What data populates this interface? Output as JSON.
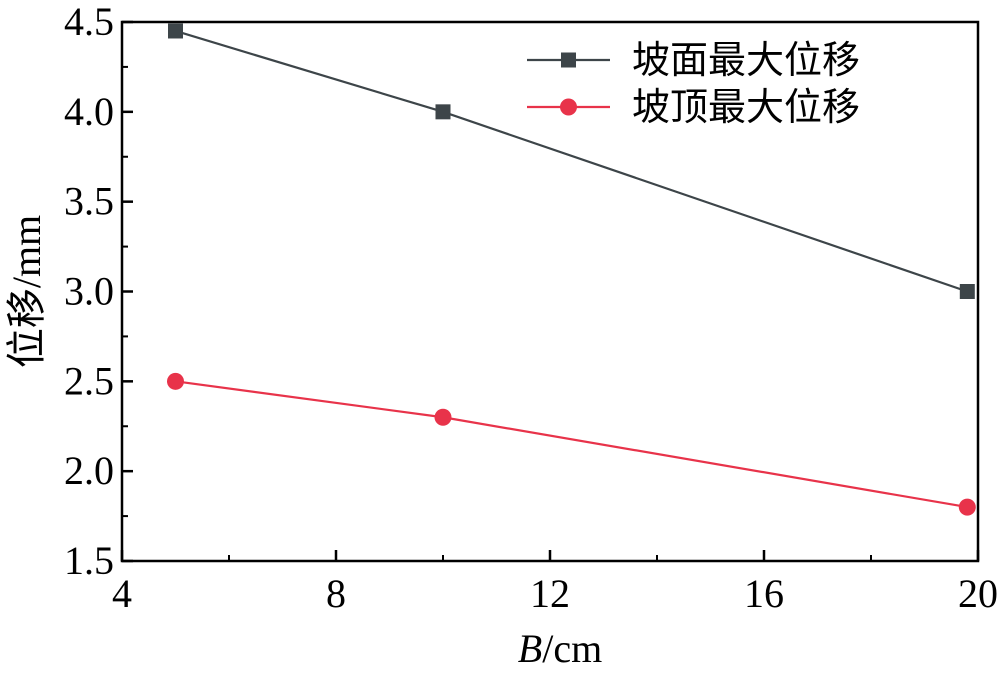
{
  "chart_data": {
    "type": "line",
    "xlabel_var": "B",
    "xlabel_unit": "/cm",
    "ylabel": "位移/mm",
    "xlim": [
      4,
      20
    ],
    "ylim": [
      1.5,
      4.5
    ],
    "xticks": [
      4,
      8,
      12,
      16,
      20
    ],
    "yticks": [
      1.5,
      2.0,
      2.5,
      3.0,
      3.5,
      4.0,
      4.5
    ],
    "xtick_labels": [
      "4",
      "8",
      "12",
      "16",
      "20"
    ],
    "ytick_labels": [
      "1.5",
      "2.0",
      "2.5",
      "3.0",
      "3.5",
      "4.0",
      "4.5"
    ],
    "grid": false,
    "legend_position": "top-right",
    "series": [
      {
        "name": "坡面最大位移",
        "marker": "square",
        "color": "#3d4549",
        "x": [
          5,
          10,
          19.8
        ],
        "y": [
          4.45,
          4.0,
          3.0
        ]
      },
      {
        "name": "坡顶最大位移",
        "marker": "circle",
        "color": "#e8334a",
        "x": [
          5,
          10,
          19.8
        ],
        "y": [
          2.5,
          2.3,
          1.8
        ]
      }
    ]
  }
}
